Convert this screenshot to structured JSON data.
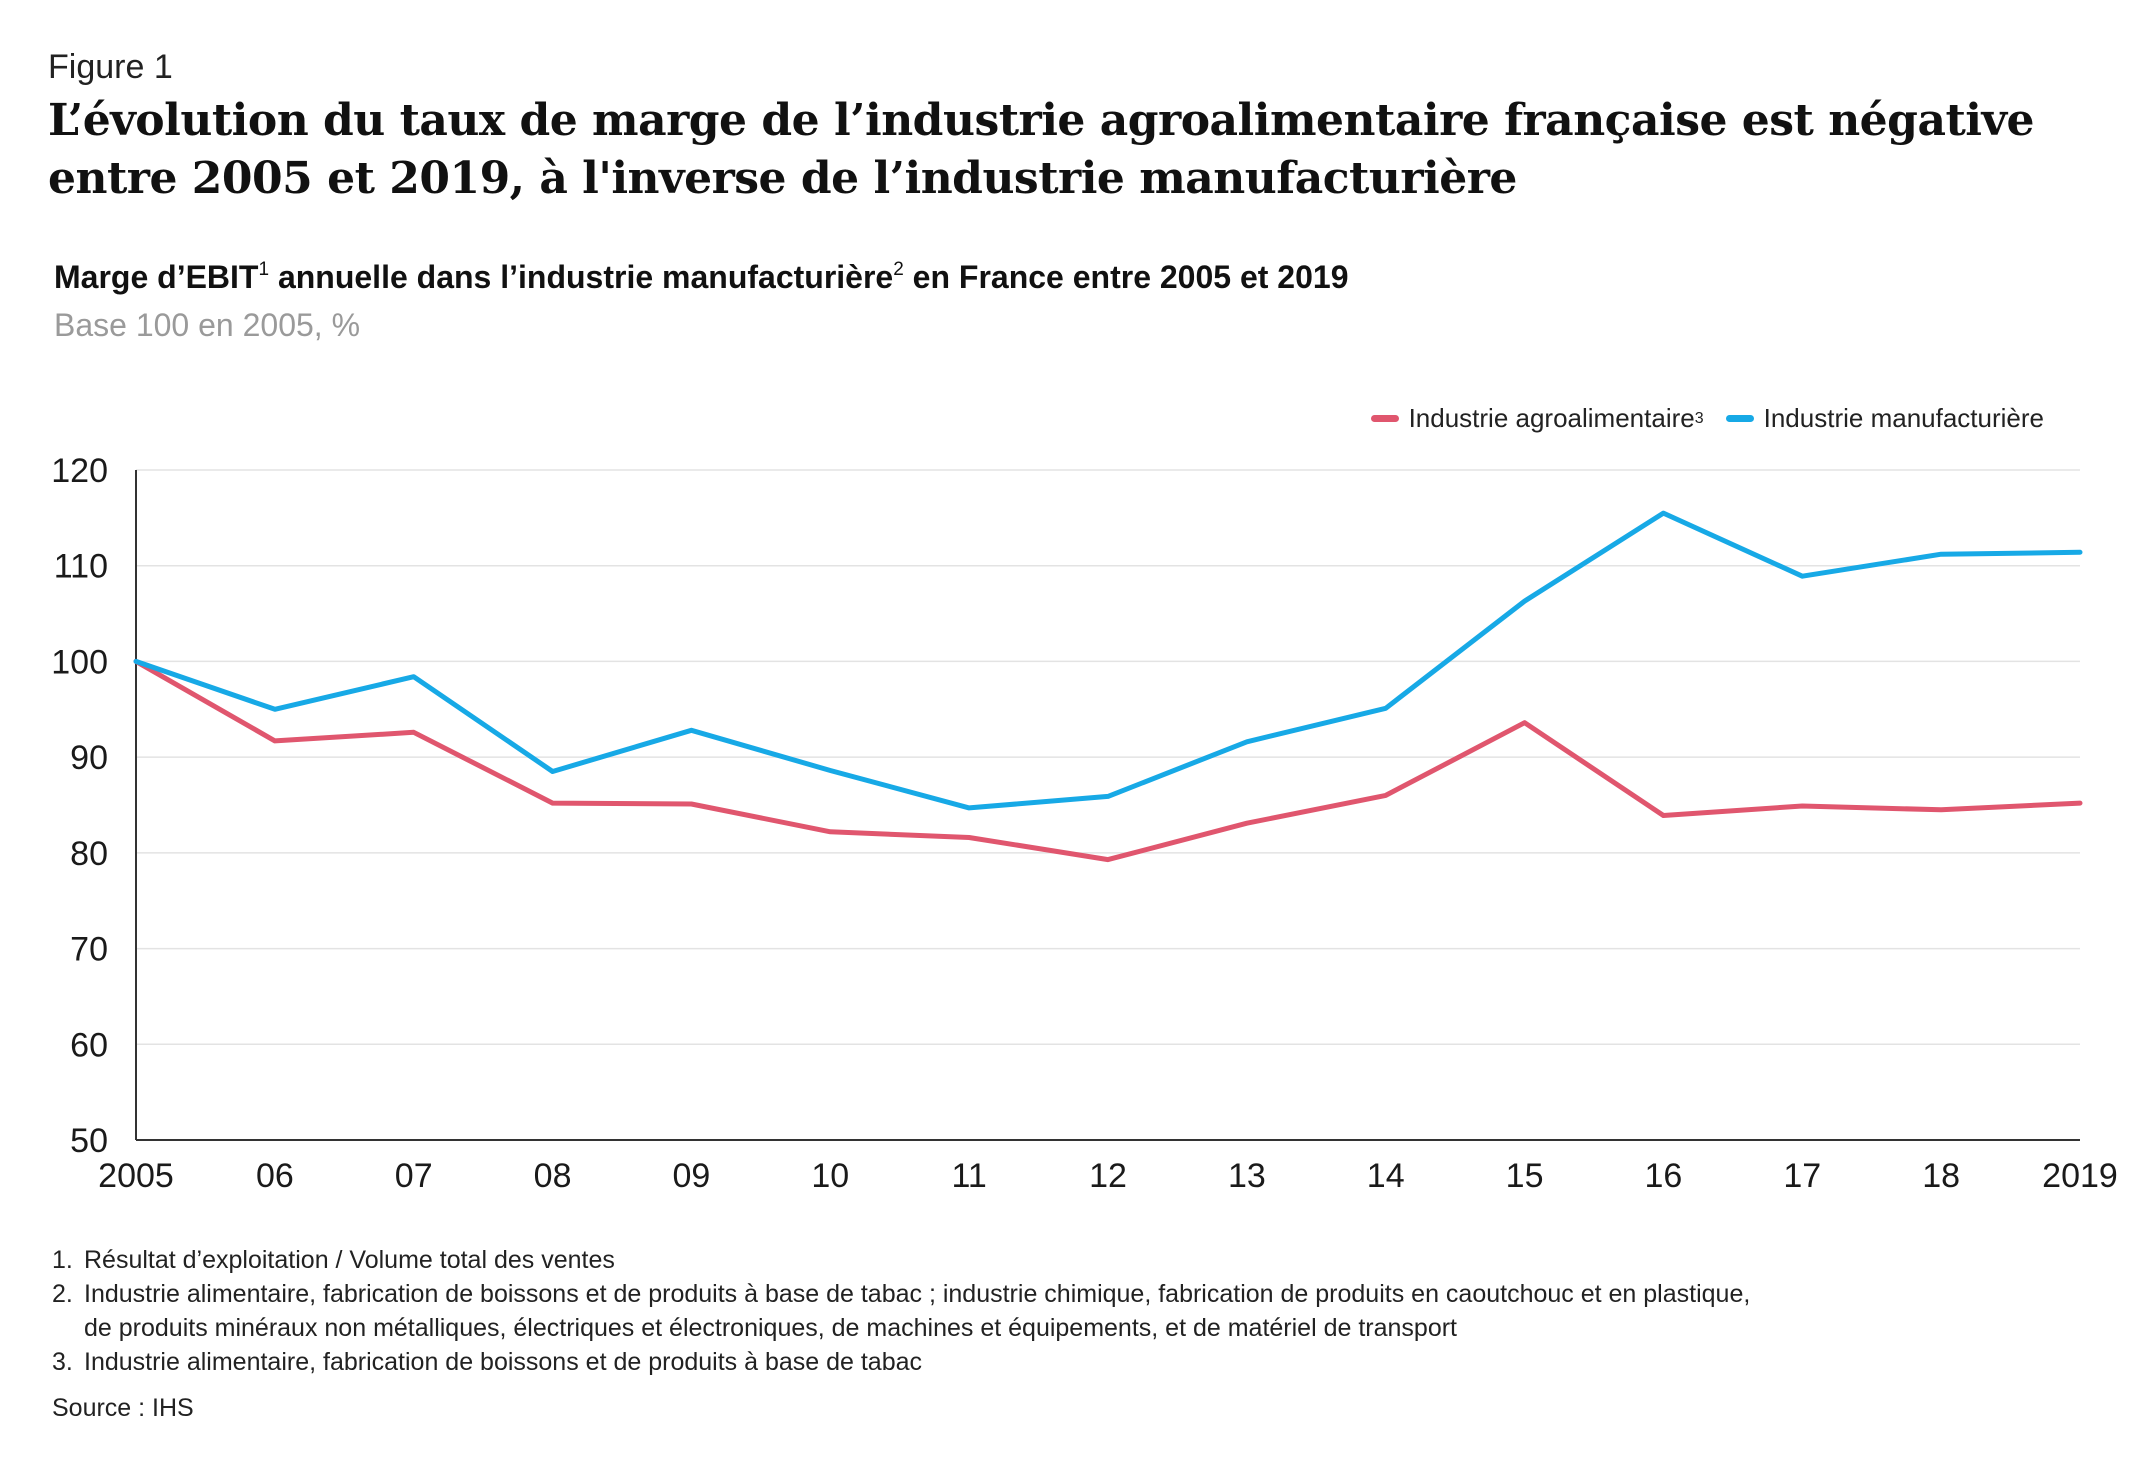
{
  "figure_label": "Figure 1",
  "headline_line1": "L’évolution du taux de marge de l’industrie agroalimentaire française est négative",
  "headline_line2": "entre 2005 et 2019, à l'inverse de l’industrie manufacturière",
  "chart_title": {
    "part1": "Marge d’EBIT",
    "sup1": "1",
    "part2": " annuelle dans l’industrie manufacturière",
    "sup2": "2",
    "part3": " en France entre 2005 et 2019"
  },
  "chart_subtitle": "Base 100 en 2005, %",
  "legend": {
    "agro_label": "Industrie agroalimentaire",
    "agro_sup": "3",
    "manuf_label": "Industrie manufacturière"
  },
  "colors": {
    "agro": "#e0566e",
    "manuf": "#17a9e6"
  },
  "chart_data": {
    "type": "line",
    "title": "Marge d’EBIT annuelle dans l’industrie manufacturière en France entre 2005 et 2019",
    "subtitle": "Base 100 en 2005, %",
    "categories": [
      "2005",
      "06",
      "07",
      "08",
      "09",
      "10",
      "11",
      "12",
      "13",
      "14",
      "15",
      "16",
      "17",
      "18",
      "2019"
    ],
    "series": [
      {
        "name": "Industrie agroalimentaire",
        "color": "#e0566e",
        "values": [
          100,
          91.7,
          92.6,
          85.2,
          85.1,
          82.2,
          81.6,
          79.3,
          83.1,
          86.0,
          93.6,
          83.9,
          84.9,
          84.5,
          85.2
        ]
      },
      {
        "name": "Industrie manufacturière",
        "color": "#17a9e6",
        "values": [
          100,
          95.0,
          98.4,
          88.5,
          92.8,
          88.6,
          84.7,
          85.9,
          91.6,
          95.1,
          106.3,
          115.5,
          108.9,
          111.2,
          111.4
        ]
      }
    ],
    "ylim": [
      50,
      120
    ],
    "yticks": [
      50,
      60,
      70,
      80,
      90,
      100,
      110,
      120
    ],
    "grid": true,
    "legend_position": "top-right"
  },
  "footnotes": [
    {
      "num": "1.",
      "text": "Résultat d’exploitation / Volume total des ventes"
    },
    {
      "num": "2.",
      "text": "Industrie alimentaire, fabrication de boissons et de produits à base de tabac ; industrie chimique, fabrication de produits en caoutchouc et en plastique,"
    },
    {
      "num": "",
      "text": "de produits minéraux non métalliques, électriques et électroniques, de machines et équipements, et de matériel de transport"
    },
    {
      "num": "3.",
      "text": "Industrie alimentaire, fabrication de boissons et de produits à base de tabac"
    }
  ],
  "source": "Source : IHS"
}
